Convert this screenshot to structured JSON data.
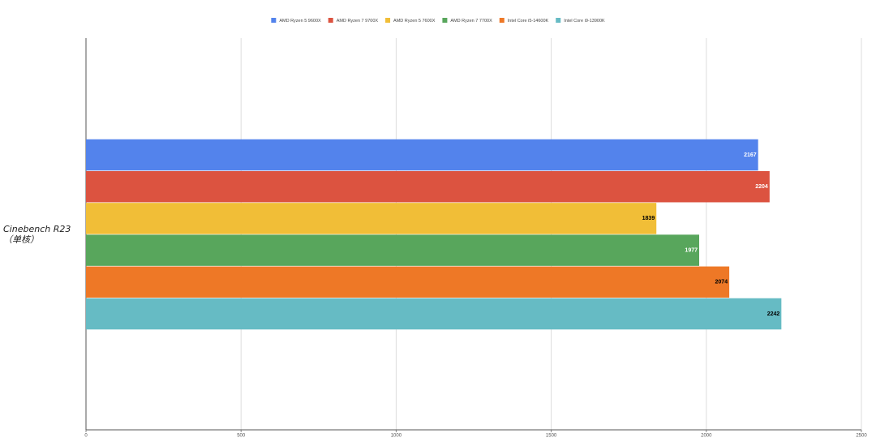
{
  "chart_data": {
    "type": "hbar",
    "categories": [
      "Cinebench R23\n（单核）"
    ],
    "series": [
      {
        "name": "AMD Ryzen 5 9600X",
        "color": "#5383ec",
        "label_color": "#ffffff",
        "values": [
          2167
        ]
      },
      {
        "name": "AMD Ryzen 7 9700X",
        "color": "#dc5340",
        "label_color": "#ffffff",
        "values": [
          2204
        ]
      },
      {
        "name": "AMD Ryzen 5 7600X",
        "color": "#f1be37",
        "label_color": "#000000",
        "values": [
          1839
        ]
      },
      {
        "name": "AMD Ryzen 7 7700X",
        "color": "#58a65c",
        "label_color": "#ffffff",
        "values": [
          1977
        ]
      },
      {
        "name": "Intel Core i5-14600K",
        "color": "#ee7826",
        "label_color": "#000000",
        "values": [
          2074
        ]
      },
      {
        "name": "Intel Core i9-13900K",
        "color": "#66bbc4",
        "label_color": "#000000",
        "values": [
          2242
        ]
      }
    ],
    "xlim": [
      0,
      2500
    ],
    "xticks": [
      0,
      500,
      1000,
      1500,
      2000,
      2500
    ],
    "grid": true,
    "legend": "top"
  }
}
